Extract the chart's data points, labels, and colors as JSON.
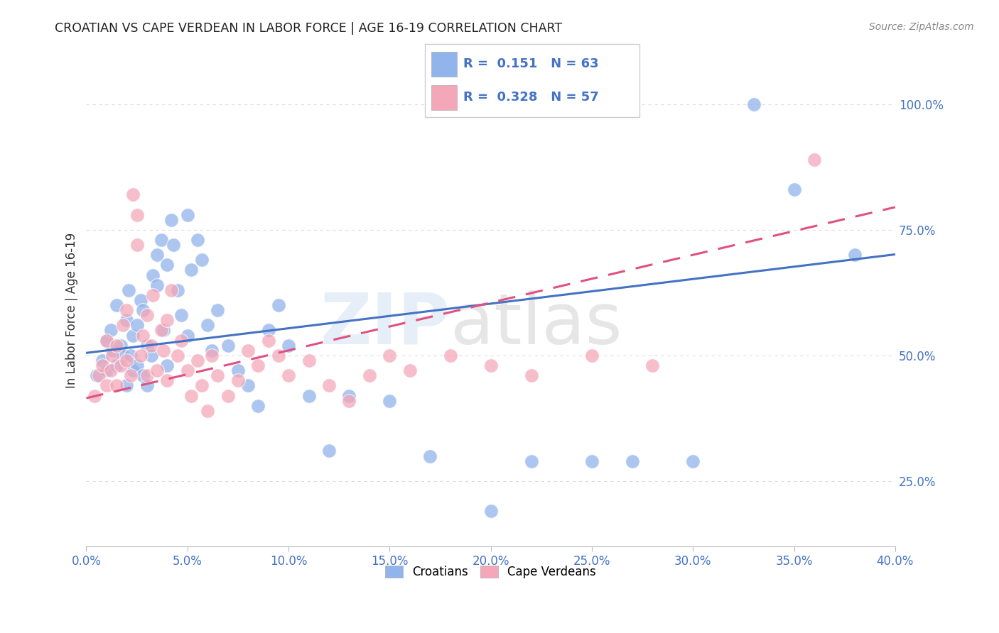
{
  "title": "CROATIAN VS CAPE VERDEAN IN LABOR FORCE | AGE 16-19 CORRELATION CHART",
  "source": "Source: ZipAtlas.com",
  "ylabel": "In Labor Force | Age 16-19",
  "watermark_zip": "ZIP",
  "watermark_atlas": "atlas",
  "xlim": [
    0.0,
    0.4
  ],
  "ylim": [
    0.12,
    1.06
  ],
  "yticks_right": [
    0.25,
    0.5,
    0.75,
    1.0
  ],
  "ytick_labels_right": [
    "25.0%",
    "50.0%",
    "75.0%",
    "100.0%"
  ],
  "xticks": [
    0.0,
    0.05,
    0.1,
    0.15,
    0.2,
    0.25,
    0.3,
    0.35,
    0.4
  ],
  "xtick_labels": [
    "0.0%",
    "5.0%",
    "10.0%",
    "15.0%",
    "20.0%",
    "25.0%",
    "30.0%",
    "35.0%",
    "40.0%"
  ],
  "legend_R1": "0.151",
  "legend_N1": "63",
  "legend_R2": "0.328",
  "legend_N2": "57",
  "blue_color": "#92B4EC",
  "pink_color": "#F4A7B9",
  "trend_blue": "#4472C4",
  "trend_pink": "#E05080",
  "title_color": "#222222",
  "axis_label_color": "#333333",
  "tick_color": "#4472C4",
  "grid_color": "#DDDDDD",
  "blue_scatter_x": [
    0.005,
    0.008,
    0.01,
    0.01,
    0.012,
    0.013,
    0.015,
    0.015,
    0.017,
    0.018,
    0.02,
    0.02,
    0.021,
    0.022,
    0.023,
    0.023,
    0.025,
    0.025,
    0.027,
    0.028,
    0.028,
    0.03,
    0.03,
    0.032,
    0.033,
    0.035,
    0.035,
    0.037,
    0.038,
    0.04,
    0.04,
    0.042,
    0.043,
    0.045,
    0.047,
    0.05,
    0.05,
    0.052,
    0.055,
    0.057,
    0.06,
    0.062,
    0.065,
    0.07,
    0.075,
    0.08,
    0.085,
    0.09,
    0.095,
    0.1,
    0.11,
    0.12,
    0.13,
    0.15,
    0.17,
    0.2,
    0.22,
    0.25,
    0.27,
    0.3,
    0.33,
    0.35,
    0.38
  ],
  "blue_scatter_y": [
    0.46,
    0.49,
    0.53,
    0.47,
    0.55,
    0.51,
    0.6,
    0.48,
    0.52,
    0.5,
    0.44,
    0.57,
    0.63,
    0.5,
    0.47,
    0.54,
    0.48,
    0.56,
    0.61,
    0.46,
    0.59,
    0.52,
    0.44,
    0.5,
    0.66,
    0.7,
    0.64,
    0.73,
    0.55,
    0.48,
    0.68,
    0.77,
    0.72,
    0.63,
    0.58,
    0.54,
    0.78,
    0.67,
    0.73,
    0.69,
    0.56,
    0.51,
    0.59,
    0.52,
    0.47,
    0.44,
    0.4,
    0.55,
    0.6,
    0.52,
    0.42,
    0.31,
    0.42,
    0.41,
    0.3,
    0.19,
    0.29,
    0.29,
    0.29,
    0.29,
    1.0,
    0.83,
    0.7
  ],
  "pink_scatter_x": [
    0.004,
    0.006,
    0.008,
    0.01,
    0.01,
    0.012,
    0.013,
    0.015,
    0.015,
    0.017,
    0.018,
    0.02,
    0.02,
    0.022,
    0.023,
    0.025,
    0.025,
    0.027,
    0.028,
    0.03,
    0.03,
    0.032,
    0.033,
    0.035,
    0.037,
    0.038,
    0.04,
    0.04,
    0.042,
    0.045,
    0.047,
    0.05,
    0.052,
    0.055,
    0.057,
    0.06,
    0.062,
    0.065,
    0.07,
    0.075,
    0.08,
    0.085,
    0.09,
    0.095,
    0.1,
    0.11,
    0.12,
    0.13,
    0.14,
    0.15,
    0.16,
    0.18,
    0.2,
    0.22,
    0.25,
    0.28,
    0.36
  ],
  "pink_scatter_y": [
    0.42,
    0.46,
    0.48,
    0.44,
    0.53,
    0.47,
    0.5,
    0.44,
    0.52,
    0.48,
    0.56,
    0.49,
    0.59,
    0.46,
    0.82,
    0.78,
    0.72,
    0.5,
    0.54,
    0.46,
    0.58,
    0.52,
    0.62,
    0.47,
    0.55,
    0.51,
    0.45,
    0.57,
    0.63,
    0.5,
    0.53,
    0.47,
    0.42,
    0.49,
    0.44,
    0.39,
    0.5,
    0.46,
    0.42,
    0.45,
    0.51,
    0.48,
    0.53,
    0.5,
    0.46,
    0.49,
    0.44,
    0.41,
    0.46,
    0.5,
    0.47,
    0.5,
    0.48,
    0.46,
    0.5,
    0.48,
    0.89
  ]
}
